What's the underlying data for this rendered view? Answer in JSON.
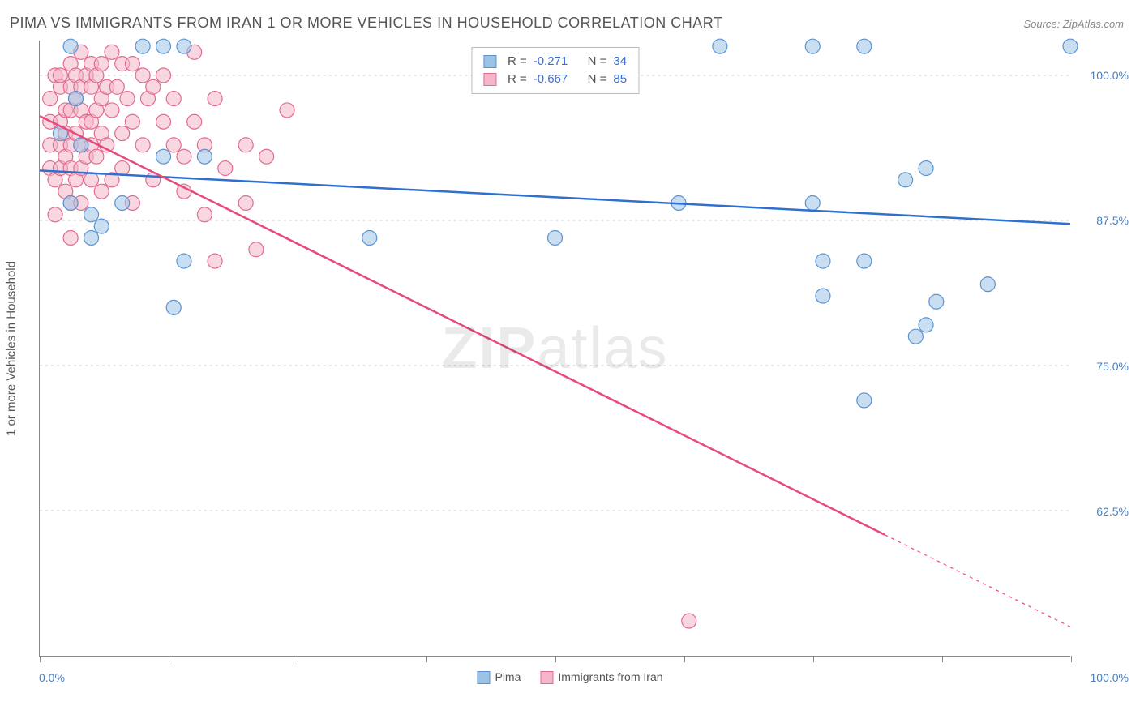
{
  "title": "PIMA VS IMMIGRANTS FROM IRAN 1 OR MORE VEHICLES IN HOUSEHOLD CORRELATION CHART",
  "source_label": "Source: ZipAtlas.com",
  "ylabel": "1 or more Vehicles in Household",
  "watermark_a": "ZIP",
  "watermark_b": "atlas",
  "chart": {
    "type": "scatter",
    "xlim": [
      0,
      100
    ],
    "ylim": [
      50,
      103
    ],
    "x_min_label": "0.0%",
    "x_max_label": "100.0%",
    "y_ticks": [
      62.5,
      75.0,
      87.5,
      100.0
    ],
    "y_tick_labels": [
      "62.5%",
      "75.0%",
      "87.5%",
      "100.0%"
    ],
    "x_tick_positions": [
      0,
      12.5,
      25,
      37.5,
      50,
      62.5,
      75,
      87.5,
      100
    ],
    "grid_color": "#cccccc",
    "axis_color": "#888888",
    "background_color": "#ffffff",
    "series": [
      {
        "name": "Pima",
        "fill": "#9cc2e5",
        "stroke": "#5b93d0",
        "fill_opacity": 0.55,
        "line_color": "#2f6fd0",
        "line_width": 2.5,
        "R": -0.271,
        "N": 34,
        "trend": {
          "x1": 0,
          "y1": 91.8,
          "x2": 100,
          "y2": 87.2,
          "dash_after_x": null
        },
        "points": [
          {
            "x": 2,
            "y": 95
          },
          {
            "x": 3,
            "y": 89
          },
          {
            "x": 3,
            "y": 102.5
          },
          {
            "x": 3.5,
            "y": 98
          },
          {
            "x": 4,
            "y": 94
          },
          {
            "x": 5,
            "y": 88
          },
          {
            "x": 5,
            "y": 86
          },
          {
            "x": 6,
            "y": 87
          },
          {
            "x": 8,
            "y": 89
          },
          {
            "x": 10,
            "y": 102.5
          },
          {
            "x": 12,
            "y": 102.5
          },
          {
            "x": 12,
            "y": 93
          },
          {
            "x": 13,
            "y": 80
          },
          {
            "x": 14,
            "y": 84
          },
          {
            "x": 14,
            "y": 102.5
          },
          {
            "x": 16,
            "y": 93
          },
          {
            "x": 32,
            "y": 86
          },
          {
            "x": 50,
            "y": 86
          },
          {
            "x": 62,
            "y": 89
          },
          {
            "x": 66,
            "y": 102.5
          },
          {
            "x": 75,
            "y": 102.5
          },
          {
            "x": 75,
            "y": 89
          },
          {
            "x": 80,
            "y": 102.5
          },
          {
            "x": 76,
            "y": 81
          },
          {
            "x": 76,
            "y": 84
          },
          {
            "x": 80,
            "y": 72
          },
          {
            "x": 80,
            "y": 84
          },
          {
            "x": 84,
            "y": 91
          },
          {
            "x": 85,
            "y": 77.5
          },
          {
            "x": 86,
            "y": 78.5
          },
          {
            "x": 87,
            "y": 80.5
          },
          {
            "x": 86,
            "y": 92
          },
          {
            "x": 92,
            "y": 82
          },
          {
            "x": 100,
            "y": 102.5
          }
        ]
      },
      {
        "name": "Immigrants from Iran",
        "fill": "#f4b6c8",
        "stroke": "#e26b8f",
        "fill_opacity": 0.55,
        "line_color": "#e84a7a",
        "line_width": 2.5,
        "R": -0.667,
        "N": 85,
        "trend": {
          "x1": 0,
          "y1": 96.5,
          "x2": 100,
          "y2": 52.5,
          "dash_after_x": 82
        },
        "points": [
          {
            "x": 1,
            "y": 92
          },
          {
            "x": 1,
            "y": 94
          },
          {
            "x": 1,
            "y": 96
          },
          {
            "x": 1,
            "y": 98
          },
          {
            "x": 1.5,
            "y": 100
          },
          {
            "x": 1.5,
            "y": 91
          },
          {
            "x": 1.5,
            "y": 88
          },
          {
            "x": 2,
            "y": 94
          },
          {
            "x": 2,
            "y": 96
          },
          {
            "x": 2,
            "y": 99
          },
          {
            "x": 2,
            "y": 100
          },
          {
            "x": 2,
            "y": 92
          },
          {
            "x": 2.5,
            "y": 97
          },
          {
            "x": 2.5,
            "y": 95
          },
          {
            "x": 2.5,
            "y": 93
          },
          {
            "x": 2.5,
            "y": 90
          },
          {
            "x": 3,
            "y": 101
          },
          {
            "x": 3,
            "y": 99
          },
          {
            "x": 3,
            "y": 97
          },
          {
            "x": 3,
            "y": 94
          },
          {
            "x": 3,
            "y": 92
          },
          {
            "x": 3,
            "y": 89
          },
          {
            "x": 3,
            "y": 86
          },
          {
            "x": 3.5,
            "y": 100
          },
          {
            "x": 3.5,
            "y": 98
          },
          {
            "x": 3.5,
            "y": 95
          },
          {
            "x": 3.5,
            "y": 91
          },
          {
            "x": 4,
            "y": 102
          },
          {
            "x": 4,
            "y": 99
          },
          {
            "x": 4,
            "y": 97
          },
          {
            "x": 4,
            "y": 94
          },
          {
            "x": 4,
            "y": 92
          },
          {
            "x": 4,
            "y": 89
          },
          {
            "x": 4.5,
            "y": 100
          },
          {
            "x": 4.5,
            "y": 96
          },
          {
            "x": 4.5,
            "y": 93
          },
          {
            "x": 5,
            "y": 101
          },
          {
            "x": 5,
            "y": 99
          },
          {
            "x": 5,
            "y": 96
          },
          {
            "x": 5,
            "y": 94
          },
          {
            "x": 5,
            "y": 91
          },
          {
            "x": 5.5,
            "y": 100
          },
          {
            "x": 5.5,
            "y": 97
          },
          {
            "x": 5.5,
            "y": 93
          },
          {
            "x": 6,
            "y": 101
          },
          {
            "x": 6,
            "y": 98
          },
          {
            "x": 6,
            "y": 95
          },
          {
            "x": 6,
            "y": 90
          },
          {
            "x": 6.5,
            "y": 99
          },
          {
            "x": 6.5,
            "y": 94
          },
          {
            "x": 7,
            "y": 102
          },
          {
            "x": 7,
            "y": 97
          },
          {
            "x": 7,
            "y": 91
          },
          {
            "x": 7.5,
            "y": 99
          },
          {
            "x": 8,
            "y": 101
          },
          {
            "x": 8,
            "y": 95
          },
          {
            "x": 8,
            "y": 92
          },
          {
            "x": 8.5,
            "y": 98
          },
          {
            "x": 9,
            "y": 101
          },
          {
            "x": 9,
            "y": 96
          },
          {
            "x": 9,
            "y": 89
          },
          {
            "x": 10,
            "y": 100
          },
          {
            "x": 10,
            "y": 94
          },
          {
            "x": 10.5,
            "y": 98
          },
          {
            "x": 11,
            "y": 91
          },
          {
            "x": 11,
            "y": 99
          },
          {
            "x": 12,
            "y": 100
          },
          {
            "x": 12,
            "y": 96
          },
          {
            "x": 13,
            "y": 94
          },
          {
            "x": 13,
            "y": 98
          },
          {
            "x": 14,
            "y": 90
          },
          {
            "x": 14,
            "y": 93
          },
          {
            "x": 15,
            "y": 102
          },
          {
            "x": 15,
            "y": 96
          },
          {
            "x": 16,
            "y": 88
          },
          {
            "x": 16,
            "y": 94
          },
          {
            "x": 17,
            "y": 98
          },
          {
            "x": 17,
            "y": 84
          },
          {
            "x": 18,
            "y": 92
          },
          {
            "x": 20,
            "y": 94
          },
          {
            "x": 20,
            "y": 89
          },
          {
            "x": 21,
            "y": 85
          },
          {
            "x": 22,
            "y": 93
          },
          {
            "x": 24,
            "y": 97
          },
          {
            "x": 63,
            "y": 53
          }
        ]
      }
    ]
  },
  "legend_labels": {
    "R": "R =",
    "N": "N ="
  },
  "bottom_legend": [
    {
      "label": "Pima",
      "fill": "#9cc2e5",
      "stroke": "#5b93d0"
    },
    {
      "label": "Immigrants from Iran",
      "fill": "#f4b6c8",
      "stroke": "#e26b8f"
    }
  ]
}
